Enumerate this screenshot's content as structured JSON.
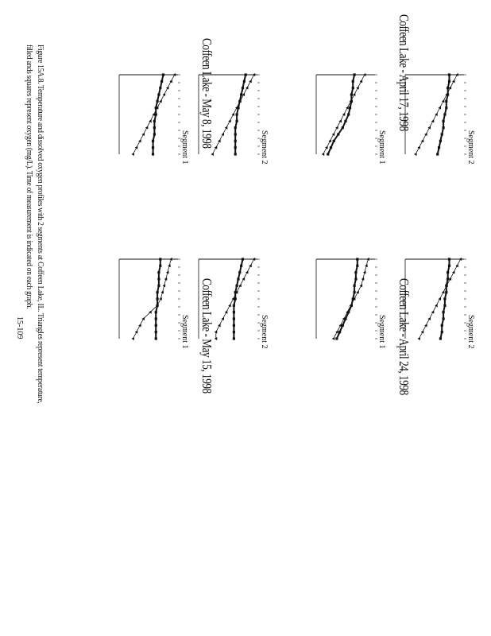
{
  "groups": [
    {
      "title": "Coffeen Lake - April 17, 1998"
    },
    {
      "title": "Coffeen Lake - April 24, 1998"
    },
    {
      "title": "Coffeen Lake - May 8, 1998"
    },
    {
      "title": "Coffeen Lake - May 15, 1998"
    }
  ],
  "signal_labels": {
    "s1": "Segment 1",
    "s2": "Segment 2"
  },
  "caption": {
    "line1": "Figure 15A.8. Temperature and dissolved oxygen profiles with 2 segments at Coffeen Lake, IL. Triangles represent temperature,",
    "line2": "filled ands squares represent oxygen (mg/L). Time of measurement is indicated on each graph."
  },
  "page_number": "15-109",
  "colors": {
    "ink": "#111111",
    "paper": "#ffffff"
  },
  "chart_data": [
    {
      "type": "line",
      "group": "Coffeen Lake - April 17, 1998",
      "panel": "Segment 1",
      "x": [
        0,
        1,
        2,
        3,
        4,
        5,
        6,
        7,
        8,
        9,
        10,
        11,
        12
      ],
      "series": [
        {
          "values": [
            29,
            28,
            27,
            26,
            25,
            24,
            23,
            22,
            21,
            20,
            19,
            18,
            17
          ]
        },
        {
          "values": [
            8.6,
            8.5,
            8.5,
            8.4,
            8.4,
            8.3,
            8.2,
            8.0,
            7.8,
            7.5,
            7.2,
            7.0,
            6.8
          ]
        }
      ]
    },
    {
      "type": "line",
      "group": "Coffeen Lake - April 17, 1998",
      "panel": "Segment 2",
      "x": [
        0,
        1,
        2,
        3,
        4,
        5,
        6,
        7,
        8,
        9,
        10,
        11,
        12
      ],
      "series": [
        {
          "values": [
            30,
            29,
            28,
            27,
            26,
            25,
            24,
            23,
            22,
            21,
            20,
            19,
            18
          ]
        },
        {
          "values": [
            9.0,
            9.0,
            8.9,
            8.9,
            8.8,
            8.8,
            8.7,
            8.6,
            8.6,
            8.5,
            8.4,
            8.3,
            8.2
          ]
        }
      ]
    },
    {
      "type": "line",
      "group": "Coffeen Lake - April 24, 1998",
      "panel": "Segment 1",
      "x": [
        0,
        1,
        2,
        3,
        4,
        5,
        6,
        7,
        8,
        9,
        10,
        11,
        12
      ],
      "series": [
        {
          "values": [
            30,
            29.5,
            29,
            28.5,
            28,
            27,
            26,
            25,
            24,
            23,
            22,
            21,
            20
          ]
        },
        {
          "values": [
            8.8,
            8.8,
            8.7,
            8.7,
            8.6,
            8.6,
            8.5,
            8.4,
            8.2,
            8.0,
            7.8,
            7.6,
            7.4
          ]
        }
      ]
    },
    {
      "type": "line",
      "group": "Coffeen Lake - April 24, 1998",
      "panel": "Segment 2",
      "x": [
        0,
        1,
        2,
        3,
        4,
        5,
        6,
        7,
        8,
        9,
        10,
        11,
        12
      ],
      "series": [
        {
          "values": [
            31,
            30,
            29,
            28,
            27,
            26,
            25,
            24,
            23,
            22,
            21,
            20,
            19
          ]
        },
        {
          "values": [
            9.0,
            9.0,
            8.9,
            8.9,
            8.8,
            8.8,
            8.7,
            8.7,
            8.6,
            8.6,
            8.5,
            8.5,
            8.4
          ]
        }
      ]
    },
    {
      "type": "line",
      "group": "Coffeen Lake - May 8, 1998",
      "panel": "Segment 1",
      "x": [
        0,
        1,
        2,
        3,
        4,
        5,
        6,
        7,
        8,
        9,
        10,
        11,
        12
      ],
      "series": [
        {
          "values": [
            31,
            30,
            29,
            28,
            27,
            26,
            25,
            24,
            23,
            22,
            21,
            20,
            19
          ]
        },
        {
          "values": [
            9.0,
            8.9,
            8.8,
            8.7,
            8.6,
            8.5,
            8.5,
            8.4,
            8.4,
            8.4,
            8.3,
            8.3,
            8.3
          ]
        }
      ]
    },
    {
      "type": "line",
      "group": "Coffeen Lake - May 8, 1998",
      "panel": "Segment 2",
      "x": [
        0,
        1,
        2,
        3,
        4,
        5,
        6,
        7,
        8,
        9,
        10,
        11,
        12
      ],
      "series": [
        {
          "values": [
            31,
            30,
            29,
            28,
            27,
            26,
            25,
            24,
            23,
            22,
            21,
            20,
            19
          ]
        },
        {
          "values": [
            9.2,
            9.1,
            9.0,
            8.9,
            8.8,
            8.7,
            8.6,
            8.6,
            8.5,
            8.5,
            8.5,
            8.5,
            8.5
          ]
        }
      ]
    },
    {
      "type": "line",
      "group": "Coffeen Lake - May 15, 1998",
      "panel": "Segment 1",
      "x": [
        0,
        1,
        2,
        3,
        4,
        5,
        6,
        7,
        8,
        9,
        10,
        11,
        12
      ],
      "series": [
        {
          "values": [
            30,
            29.5,
            29,
            28.5,
            28,
            27.5,
            27,
            26,
            24,
            22,
            21,
            20,
            19
          ]
        },
        {
          "values": [
            8.8,
            8.8,
            8.7,
            8.7,
            8.7,
            8.6,
            8.6,
            8.6,
            8.5,
            8.5,
            8.5,
            8.5,
            8.5
          ]
        }
      ]
    },
    {
      "type": "line",
      "group": "Coffeen Lake - May 15, 1998",
      "panel": "Segment 2",
      "x": [
        0,
        1,
        2,
        3,
        4,
        5,
        6,
        7,
        8,
        9,
        10,
        11,
        12
      ],
      "series": [
        {
          "values": [
            31,
            30,
            29,
            28,
            27,
            26,
            25,
            24,
            23,
            22,
            21,
            20,
            20
          ]
        },
        {
          "values": [
            9.0,
            8.9,
            8.8,
            8.7,
            8.6,
            8.5,
            8.5,
            8.4,
            8.4,
            8.4,
            8.4,
            8.4,
            8.4
          ]
        }
      ]
    }
  ]
}
